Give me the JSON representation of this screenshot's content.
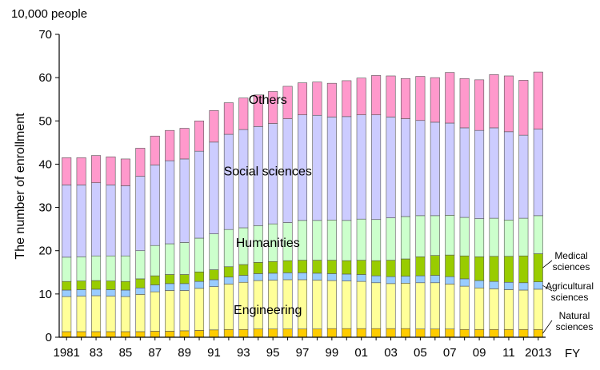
{
  "chart_data": {
    "type": "bar",
    "stacked": true,
    "unit_label": "10,000 people",
    "ylabel": "The number of enrollment",
    "xlabel": "FY",
    "ylim": [
      0,
      70
    ],
    "yticks": [
      0,
      10,
      20,
      30,
      40,
      50,
      60,
      70
    ],
    "grid": false,
    "legend": "labels placed inside the stacked bars and at the right edge",
    "categories": [
      "1981",
      "1982",
      "1983",
      "1984",
      "1985",
      "1986",
      "1987",
      "1988",
      "1989",
      "1990",
      "1991",
      "1992",
      "1993",
      "1994",
      "1995",
      "1996",
      "1997",
      "1998",
      "1999",
      "2000",
      "2001",
      "2002",
      "2003",
      "2004",
      "2005",
      "2006",
      "2007",
      "2008",
      "2009",
      "2010",
      "2011",
      "2012",
      "2013"
    ],
    "tick_labels": [
      "1981",
      "",
      "83",
      "",
      "85",
      "",
      "87",
      "",
      "89",
      "",
      "91",
      "",
      "93",
      "",
      "95",
      "",
      "97",
      "",
      "99",
      "",
      "01",
      "",
      "03",
      "",
      "05",
      "",
      "07",
      "",
      "09",
      "",
      "11",
      "",
      "2013"
    ],
    "series": [
      {
        "name": "Natural sciences",
        "color": "#FFCC00",
        "values": [
          1.3,
          1.3,
          1.3,
          1.3,
          1.3,
          1.3,
          1.4,
          1.4,
          1.5,
          1.6,
          1.7,
          1.8,
          1.8,
          1.9,
          1.9,
          1.9,
          1.9,
          1.9,
          2.0,
          2.0,
          2.0,
          2.0,
          2.0,
          2.0,
          1.9,
          1.9,
          1.9,
          1.8,
          1.8,
          1.8,
          1.8,
          1.8,
          1.8
        ]
      },
      {
        "name": "Engineering",
        "color": "#FFFF99",
        "values": [
          8.1,
          8.2,
          8.3,
          8.2,
          8.1,
          8.6,
          9.1,
          9.4,
          9.3,
          9.7,
          10.0,
          10.5,
          10.9,
          11.2,
          11.3,
          11.4,
          11.4,
          11.3,
          11.1,
          11.0,
          10.9,
          10.6,
          10.4,
          10.5,
          10.7,
          10.7,
          10.4,
          10.0,
          9.6,
          9.4,
          9.2,
          9.1,
          9.3
        ]
      },
      {
        "name": "Agricultural sciences",
        "color": "#99CCFF",
        "values": [
          1.5,
          1.5,
          1.5,
          1.5,
          1.5,
          1.5,
          1.6,
          1.6,
          1.6,
          1.6,
          1.6,
          1.6,
          1.6,
          1.6,
          1.6,
          1.6,
          1.6,
          1.6,
          1.6,
          1.6,
          1.6,
          1.6,
          1.6,
          1.6,
          1.6,
          1.7,
          1.7,
          1.7,
          1.7,
          1.7,
          1.7,
          1.7,
          1.7
        ]
      },
      {
        "name": "Medical sciences",
        "color": "#99CC00",
        "values": [
          2.0,
          2.0,
          2.0,
          2.0,
          2.0,
          2.1,
          2.1,
          2.1,
          2.1,
          2.2,
          2.3,
          2.4,
          2.5,
          2.6,
          2.7,
          2.8,
          2.9,
          3.0,
          3.1,
          3.1,
          3.3,
          3.5,
          3.8,
          4.0,
          4.4,
          4.6,
          5.0,
          5.3,
          5.5,
          5.8,
          6.0,
          6.2,
          6.5
        ]
      },
      {
        "name": "Humanities",
        "color": "#CCFFCC",
        "values": [
          5.6,
          5.6,
          5.7,
          5.8,
          5.9,
          6.5,
          7.0,
          7.1,
          7.4,
          7.8,
          8.3,
          8.6,
          8.5,
          8.5,
          8.7,
          8.8,
          9.2,
          9.2,
          9.3,
          9.3,
          9.5,
          9.5,
          9.8,
          9.8,
          9.5,
          9.2,
          9.2,
          8.9,
          8.8,
          8.8,
          8.4,
          8.7,
          8.8
        ]
      },
      {
        "name": "Social sciences",
        "color": "#CCCCFF",
        "values": [
          16.7,
          16.6,
          16.9,
          16.4,
          16.2,
          17.2,
          18.6,
          19.2,
          19.3,
          20.1,
          21.2,
          22.0,
          22.7,
          22.9,
          23.2,
          24.0,
          24.4,
          24.3,
          23.8,
          24.0,
          24.1,
          24.2,
          23.3,
          22.6,
          22.0,
          21.6,
          21.3,
          20.7,
          20.4,
          20.9,
          20.4,
          19.2,
          20.0
        ]
      },
      {
        "name": "Others",
        "color": "#FF99CC",
        "values": [
          6.3,
          6.3,
          6.3,
          6.5,
          6.2,
          6.5,
          6.7,
          7.0,
          7.1,
          7.0,
          7.3,
          7.3,
          7.3,
          7.3,
          7.4,
          7.5,
          7.4,
          7.7,
          7.8,
          8.3,
          8.5,
          9.1,
          9.5,
          9.3,
          10.2,
          10.3,
          11.7,
          11.4,
          11.7,
          12.3,
          12.9,
          12.7,
          13.2
        ]
      }
    ],
    "inner_labels": [
      {
        "text": "Others",
        "at_year_index": 13,
        "y": 55.0
      },
      {
        "text": "Social sciences",
        "at_year_index": 13,
        "y": 38.5
      },
      {
        "text": "Humanities",
        "at_year_index": 13,
        "y": 22.0
      },
      {
        "text": "Engineering",
        "at_year_index": 13,
        "y": 6.5
      }
    ],
    "right_labels": [
      {
        "lines": [
          "Medical",
          "sciences"
        ],
        "series": "Medical sciences"
      },
      {
        "lines": [
          "Agricultural",
          "sciences"
        ],
        "series": "Agricultural sciences"
      },
      {
        "lines": [
          "Natural",
          "sciences"
        ],
        "series": "Natural sciences"
      }
    ]
  }
}
